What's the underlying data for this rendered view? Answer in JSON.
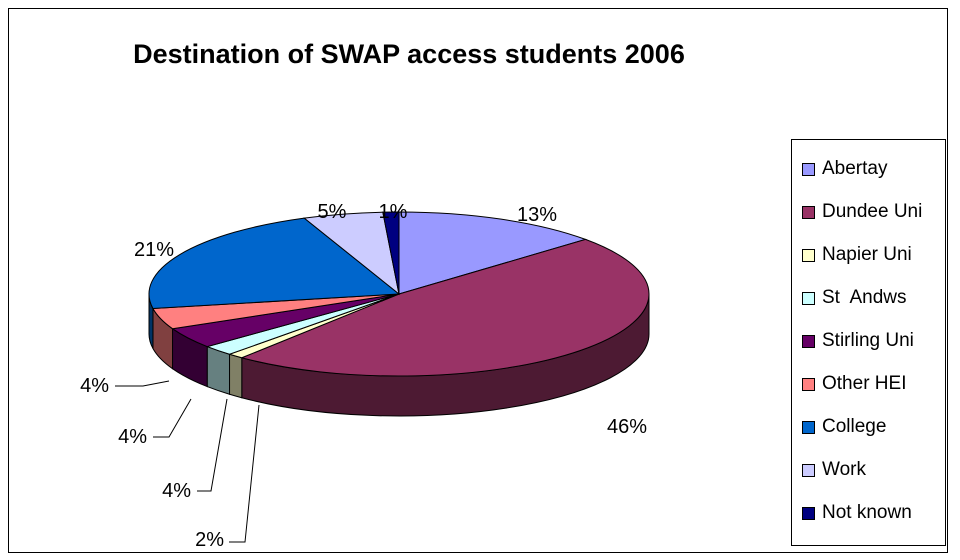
{
  "chart_data": {
    "type": "pie",
    "title": "Destination of SWAP access students 2006",
    "legend_position": "right",
    "slices": [
      {
        "label": "Abertay",
        "value": 13,
        "display": "13%",
        "color": "#9999ff"
      },
      {
        "label": "Dundee Uni",
        "value": 46,
        "display": "46%",
        "color": "#993366"
      },
      {
        "label": "Napier Uni",
        "value": 1,
        "display": "",
        "color": "#ffffcc"
      },
      {
        "label": "St  Andws",
        "value": 2,
        "display": "2%",
        "color": "#ccffff"
      },
      {
        "label": "Stirling Uni",
        "value": 4,
        "display": "4%",
        "color": "#660066"
      },
      {
        "label": "Other HEI",
        "value": 4,
        "display": "4%",
        "color": "#ff8080"
      },
      {
        "label": "College",
        "value": 21,
        "display": "21%",
        "color": "#0066cc"
      },
      {
        "label": "Work",
        "value": 5,
        "display": "5%",
        "color": "#ccccff"
      },
      {
        "label": "Not known",
        "value": 1,
        "display": "1%",
        "color": "#000080"
      }
    ],
    "extra_labels": [
      "4%"
    ]
  }
}
